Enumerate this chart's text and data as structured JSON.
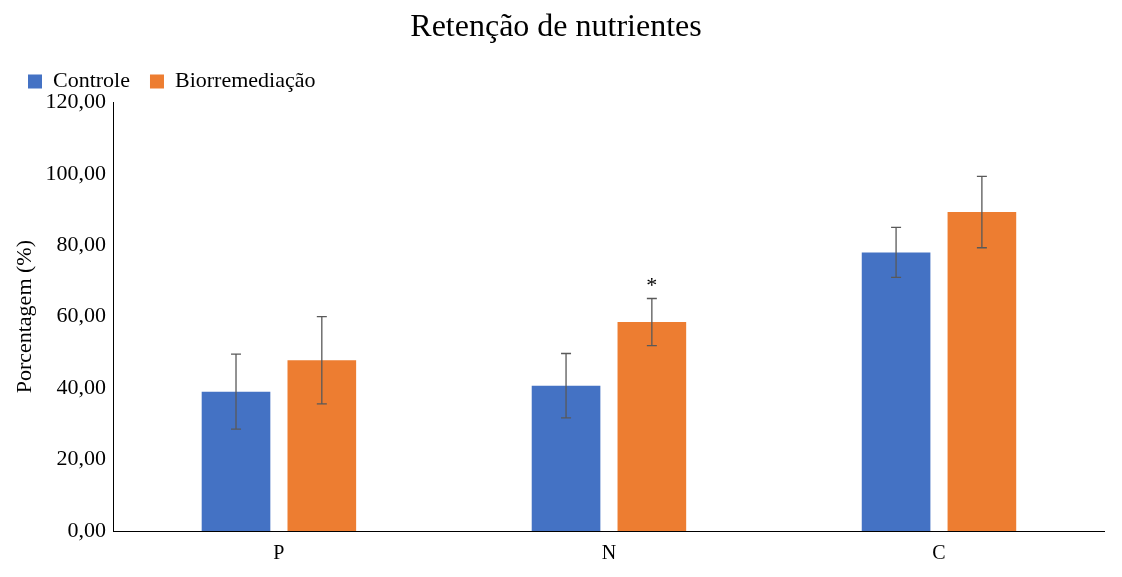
{
  "chart_data": {
    "type": "bar",
    "title": "Retenção de nutrientes",
    "ylabel": "Porcentagem (%)",
    "categories": [
      "P",
      "N",
      "C"
    ],
    "series": [
      {
        "name": "Controle",
        "color": "#4472c4",
        "values": [
          39.0,
          40.7,
          78.0
        ],
        "errors": [
          10.5,
          9.0,
          7.0
        ]
      },
      {
        "name": "Biorremediação",
        "color": "#ed7d31",
        "values": [
          47.8,
          58.5,
          89.3
        ],
        "errors": [
          12.2,
          6.6,
          10.0
        ]
      }
    ],
    "ylim": [
      0,
      120
    ],
    "yticks": [
      {
        "value": 0,
        "label": "0,00"
      },
      {
        "value": 20,
        "label": "20,00"
      },
      {
        "value": 40,
        "label": "40,00"
      },
      {
        "value": 60,
        "label": "60,00"
      },
      {
        "value": 80,
        "label": "80,00"
      },
      {
        "value": 100,
        "label": "100,00"
      },
      {
        "value": 120,
        "label": "120,00"
      }
    ],
    "annotations": [
      "*"
    ],
    "legend": "top left",
    "grid": false
  }
}
